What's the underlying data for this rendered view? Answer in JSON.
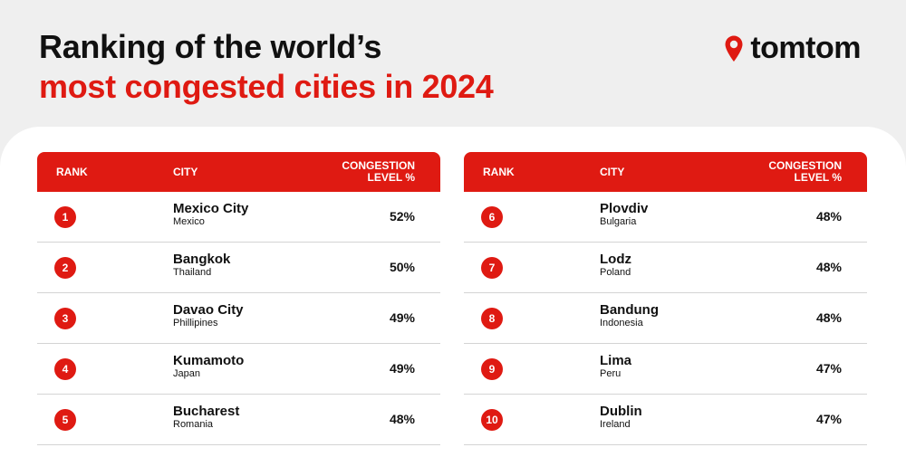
{
  "title": {
    "line1": "Ranking of the world’s",
    "line2": "most congested cities in 2024"
  },
  "logo": {
    "text": "tomtom",
    "icon": "location-pin-icon",
    "color": "#df1a12"
  },
  "colors": {
    "accent": "#df1a12",
    "background": "#efefef",
    "card": "#ffffff"
  },
  "table_headers": {
    "rank": "RANK",
    "city": "CITY",
    "congestion_line1": "CONGESTION",
    "congestion_line2": "LEVEL %"
  },
  "left_table": {
    "rows": [
      {
        "rank": "1",
        "city": "Mexico City",
        "country": "Mexico",
        "level": "52%"
      },
      {
        "rank": "2",
        "city": "Bangkok",
        "country": "Thailand",
        "level": "50%"
      },
      {
        "rank": "3",
        "city": "Davao City",
        "country": "Phillipines",
        "level": "49%"
      },
      {
        "rank": "4",
        "city": "Kumamoto",
        "country": "Japan",
        "level": "49%"
      },
      {
        "rank": "5",
        "city": "Bucharest",
        "country": "Romania",
        "level": "48%"
      }
    ]
  },
  "right_table": {
    "rows": [
      {
        "rank": "6",
        "city": "Plovdiv",
        "country": "Bulgaria",
        "level": "48%"
      },
      {
        "rank": "7",
        "city": "Lodz",
        "country": "Poland",
        "level": "48%"
      },
      {
        "rank": "8",
        "city": "Bandung",
        "country": "Indonesia",
        "level": "48%"
      },
      {
        "rank": "9",
        "city": "Lima",
        "country": "Peru",
        "level": "47%"
      },
      {
        "rank": "10",
        "city": "Dublin",
        "country": "Ireland",
        "level": "47%"
      }
    ]
  }
}
